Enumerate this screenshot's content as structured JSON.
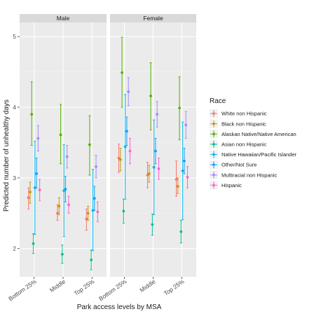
{
  "chart_data": {
    "type": "scatter",
    "facets": [
      "Male",
      "Female"
    ],
    "categories": [
      "Bottom 25%",
      "Middle",
      "Top 25%"
    ],
    "xlabel": "Park access levels by MSA",
    "ylabel": "Predicted number of unhealthy days",
    "ylim": [
      1.6,
      5.2
    ],
    "yticks": [
      2,
      3,
      4,
      5
    ],
    "grid": true,
    "legend_title": "Race",
    "legend_position": "right",
    "series": [
      {
        "name": "White non Hispanic",
        "color": "#F8766D",
        "values": {
          "Male": [
            [
              2.72,
              2.56,
              2.86
            ],
            [
              2.5,
              2.4,
              2.62
            ],
            [
              2.42,
              2.26,
              2.56
            ]
          ],
          "Female": [
            [
              3.28,
              3.08,
              3.48
            ],
            [
              3.04,
              2.86,
              3.22
            ],
            [
              2.98,
              2.74,
              3.24
            ]
          ]
        }
      },
      {
        "name": "Black non Hispanic",
        "color": "#C49A00",
        "values": {
          "Male": [
            [
              2.8,
              2.64,
              2.94
            ],
            [
              2.6,
              2.48,
              2.72
            ],
            [
              2.5,
              2.4,
              2.6
            ]
          ],
          "Female": [
            [
              3.26,
              3.1,
              3.42
            ],
            [
              3.06,
              2.94,
              3.18
            ],
            [
              2.88,
              2.78,
              3.0
            ]
          ]
        }
      },
      {
        "name": "Alaskan Native/Native American",
        "color": "#53B400",
        "values": {
          "Male": [
            [
              3.9,
              3.46,
              4.36
            ],
            [
              3.61,
              3.2,
              4.04
            ],
            [
              3.47,
              3.04,
              3.88
            ]
          ],
          "Female": [
            [
              4.49,
              4.0,
              4.99
            ],
            [
              4.16,
              3.68,
              4.63
            ],
            [
              3.99,
              3.54,
              4.43
            ]
          ]
        }
      },
      {
        "name": "Asian non Hispanic",
        "color": "#00C094",
        "values": {
          "Male": [
            [
              2.07,
              1.93,
              2.21
            ],
            [
              1.92,
              1.79,
              2.05
            ],
            [
              1.84,
              1.7,
              1.98
            ]
          ],
          "Female": [
            [
              2.53,
              2.36,
              2.7
            ],
            [
              2.34,
              2.19,
              2.49
            ],
            [
              2.24,
              2.08,
              2.4
            ]
          ]
        }
      },
      {
        "name": "Native Hawaiian/Pacific Islander",
        "color": "#00B6EB",
        "values": {
          "Male": [
            [
              2.86,
              2.2,
              3.52
            ],
            [
              2.82,
              2.17,
              3.47
            ],
            [
              2.54,
              1.97,
              3.12
            ]
          ],
          "Female": [
            [
              3.44,
              2.7,
              4.18
            ],
            [
              3.15,
              2.48,
              3.82
            ],
            [
              3.1,
              2.41,
              3.79
            ]
          ]
        }
      },
      {
        "name": "Other/Not Sure",
        "color": "#06A4FF",
        "values": {
          "Male": [
            [
              3.06,
              2.86,
              3.28
            ],
            [
              2.84,
              2.66,
              3.02
            ],
            [
              2.71,
              2.54,
              2.88
            ]
          ],
          "Female": [
            [
              3.66,
              3.46,
              3.86
            ],
            [
              3.38,
              3.2,
              3.56
            ],
            [
              3.24,
              3.06,
              3.42
            ]
          ]
        }
      },
      {
        "name": "Multiracial non Hispanic",
        "color": "#A58AFF",
        "values": {
          "Male": [
            [
              3.56,
              3.38,
              3.74
            ],
            [
              3.3,
              3.14,
              3.46
            ],
            [
              3.16,
              3.0,
              3.32
            ]
          ],
          "Female": [
            [
              4.22,
              4.02,
              4.42
            ],
            [
              3.9,
              3.72,
              4.08
            ],
            [
              3.75,
              3.56,
              3.94
            ]
          ]
        }
      },
      {
        "name": "Hispanic",
        "color": "#FB61D7",
        "values": {
          "Male": [
            [
              2.83,
              2.68,
              2.98
            ],
            [
              2.62,
              2.5,
              2.74
            ],
            [
              2.52,
              2.38,
              2.66
            ]
          ],
          "Female": [
            [
              3.38,
              3.2,
              3.56
            ],
            [
              3.13,
              2.98,
              3.28
            ],
            [
              3.01,
              2.86,
              3.16
            ]
          ]
        }
      }
    ]
  }
}
